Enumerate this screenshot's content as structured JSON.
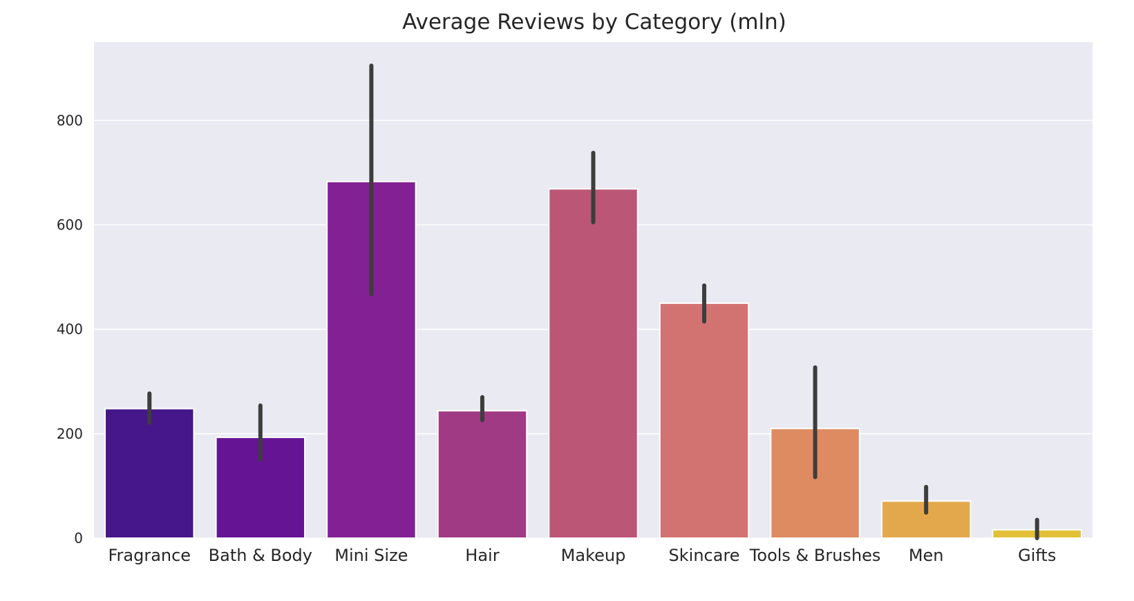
{
  "chart_data": {
    "type": "bar",
    "title": "Average Reviews by Category (mln)",
    "xlabel": "",
    "ylabel": "",
    "categories": [
      "Fragrance",
      "Bath & Body",
      "Mini Size",
      "Hair",
      "Makeup",
      "Skincare",
      "Tools & Brushes",
      "Men",
      "Gifts"
    ],
    "values": [
      248,
      193,
      683,
      244,
      669,
      450,
      210,
      71,
      16
    ],
    "error_low": [
      221,
      151,
      467,
      226,
      605,
      415,
      117,
      49,
      0
    ],
    "error_high": [
      277,
      254,
      905,
      270,
      738,
      484,
      327,
      98,
      35
    ],
    "colors": [
      "#45178a",
      "#651594",
      "#832093",
      "#a03a84",
      "#bc5677",
      "#d27371",
      "#de8b62",
      "#e4a84c",
      "#e3c038"
    ],
    "ylim": [
      0,
      950
    ],
    "yticks": [
      0,
      200,
      400,
      600,
      800
    ],
    "grid": true,
    "background": "#eaeaf2"
  }
}
